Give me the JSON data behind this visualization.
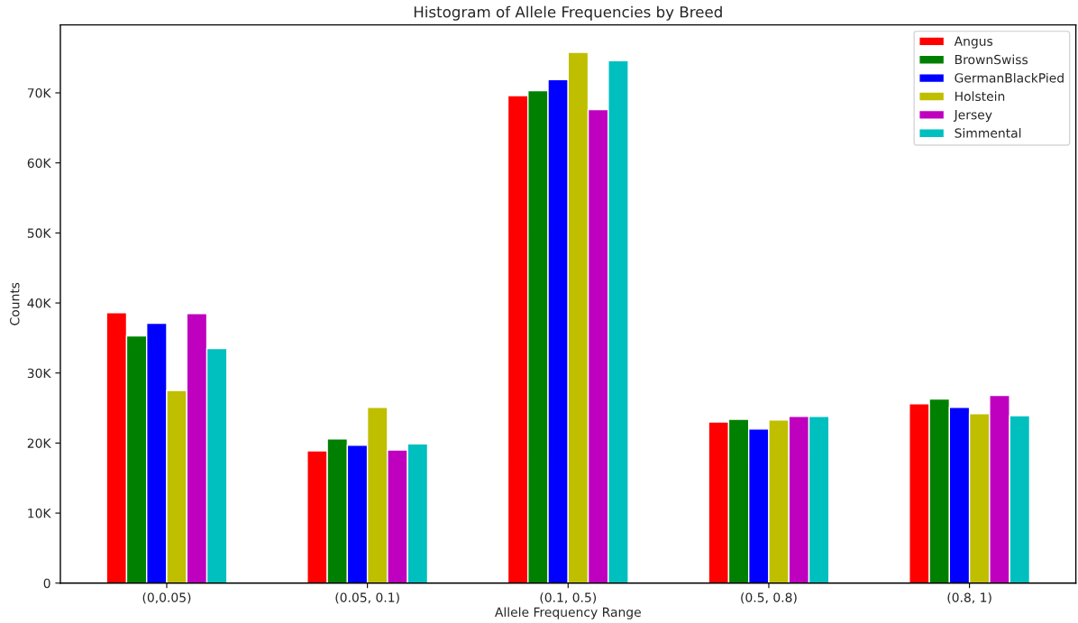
{
  "chart_data": {
    "type": "bar",
    "title": "Histogram of Allele Frequencies by Breed",
    "xlabel": "Allele Frequency Range",
    "ylabel": "Counts",
    "categories": [
      "(0,0.05)",
      "(0.05, 0.1)",
      "(0.1, 0.5)",
      "(0.5, 0.8)",
      "(0.8, 1)"
    ],
    "series": [
      {
        "name": "Angus",
        "color": "#ff0000",
        "values": [
          38600,
          18900,
          69600,
          23000,
          25600
        ]
      },
      {
        "name": "BrownSwiss",
        "color": "#008000",
        "values": [
          35300,
          20600,
          70300,
          23400,
          26300
        ]
      },
      {
        "name": "GermanBlackPied",
        "color": "#0000ff",
        "values": [
          37100,
          19700,
          71900,
          22000,
          25100
        ]
      },
      {
        "name": "Holstein",
        "color": "#bfbf00",
        "values": [
          27500,
          25100,
          75800,
          23300,
          24200
        ]
      },
      {
        "name": "Jersey",
        "color": "#bf00bf",
        "values": [
          38500,
          19000,
          67600,
          23800,
          26800
        ]
      },
      {
        "name": "Simmental",
        "color": "#00bfbf",
        "values": [
          33500,
          19900,
          74600,
          23800,
          23900
        ]
      }
    ],
    "ylim": [
      0,
      79700
    ],
    "yticks": [
      0,
      {
        "value": 10000,
        "label": "10K"
      },
      {
        "value": 20000,
        "label": "20K"
      },
      {
        "value": 30000,
        "label": "30K"
      },
      {
        "value": 40000,
        "label": "40K"
      },
      {
        "value": 50000,
        "label": "50K"
      },
      {
        "value": 60000,
        "label": "60K"
      },
      {
        "value": 70000,
        "label": "70K"
      }
    ],
    "legend": "top right",
    "grid": false
  }
}
